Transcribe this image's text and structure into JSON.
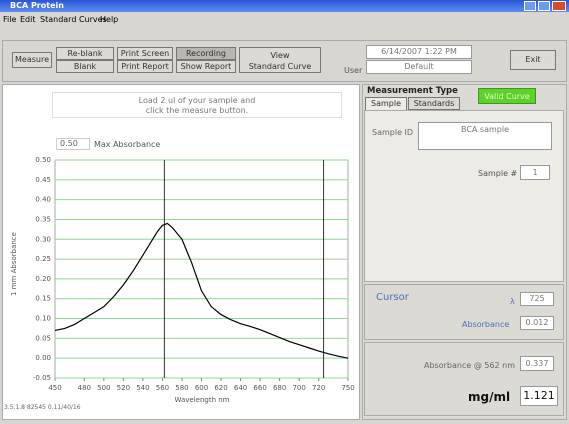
{
  "window": {
    "title": "BCA Protein",
    "menu": [
      "File",
      "Edit",
      "Standard Curves",
      "Help"
    ]
  },
  "toolbar": {
    "measure": "Measure",
    "buttons": [
      [
        "Re-blank",
        "Blank"
      ],
      [
        "Print Screen",
        "Print Report"
      ],
      [
        "Recording",
        "Show Report"
      ]
    ],
    "view": [
      "View",
      "Standard Curve"
    ],
    "user_label": "User",
    "datetime": "6/14/2007 1:22 PM",
    "user": "Default",
    "exit": "Exit"
  },
  "left": {
    "message": [
      "Load 2 ul of your sample and",
      "click the measure button."
    ],
    "max_abs_value": "0.50",
    "max_abs_label": "Max Absorbance",
    "footer": "3.5.1.8 82545 0.11/40/16"
  },
  "chart_data": {
    "type": "line",
    "xlabel": "Wavelength nm",
    "ylabel": "1 mm Absorbance",
    "x": [
      450,
      460,
      470,
      480,
      490,
      500,
      510,
      520,
      530,
      540,
      550,
      555,
      560,
      565,
      570,
      580,
      590,
      600,
      610,
      620,
      630,
      640,
      650,
      660,
      670,
      680,
      690,
      700,
      710,
      720,
      730,
      740,
      750
    ],
    "values": [
      0.07,
      0.075,
      0.085,
      0.1,
      0.115,
      0.13,
      0.155,
      0.185,
      0.22,
      0.26,
      0.3,
      0.32,
      0.335,
      0.34,
      0.33,
      0.3,
      0.24,
      0.17,
      0.13,
      0.11,
      0.097,
      0.087,
      0.08,
      0.072,
      0.062,
      0.052,
      0.042,
      0.034,
      0.026,
      0.018,
      0.011,
      0.005,
      0.0
    ],
    "color": "#000000",
    "grid": true,
    "grid_color": "#8fd88f",
    "vlines": [
      562,
      725
    ],
    "xlim": [
      450,
      750
    ],
    "xticks": [
      450,
      480,
      500,
      520,
      540,
      560,
      580,
      600,
      620,
      640,
      660,
      680,
      700,
      720,
      750
    ],
    "ylim": [
      -0.05,
      0.5
    ],
    "yticks": [
      {
        "value": -0.05,
        "label": "-0.05"
      },
      {
        "value": 0,
        "label": "0.00"
      },
      {
        "value": 0.05,
        "label": "0.05"
      },
      {
        "value": 0.1,
        "label": "0.10"
      },
      {
        "value": 0.15,
        "label": "0.15"
      },
      {
        "value": 0.2,
        "label": "0.20"
      },
      {
        "value": 0.25,
        "label": "0.25"
      },
      {
        "value": 0.3,
        "label": "0.30"
      },
      {
        "value": 0.35,
        "label": "0.35"
      },
      {
        "value": 0.4,
        "label": "0.40"
      },
      {
        "value": 0.45,
        "label": "0.45"
      },
      {
        "value": 0.5,
        "label": "0.50"
      }
    ]
  },
  "right": {
    "heading": "Measurement Type",
    "tabs": [
      "Sample",
      "Standards"
    ],
    "valid": "Valid Curve",
    "sample_id_label": "Sample ID",
    "sample_id": "BCA sample",
    "sample_no_label": "Sample #",
    "sample_no": "1",
    "cursor": "Cursor",
    "lambda_label": "λ",
    "lambda": "725",
    "abs_label": "Absorbance",
    "abs": "0.012",
    "abs562_label": "Absorbance @ 562 nm",
    "abs562": "0.337",
    "conc_label": "mg/ml",
    "conc": "1.121"
  }
}
